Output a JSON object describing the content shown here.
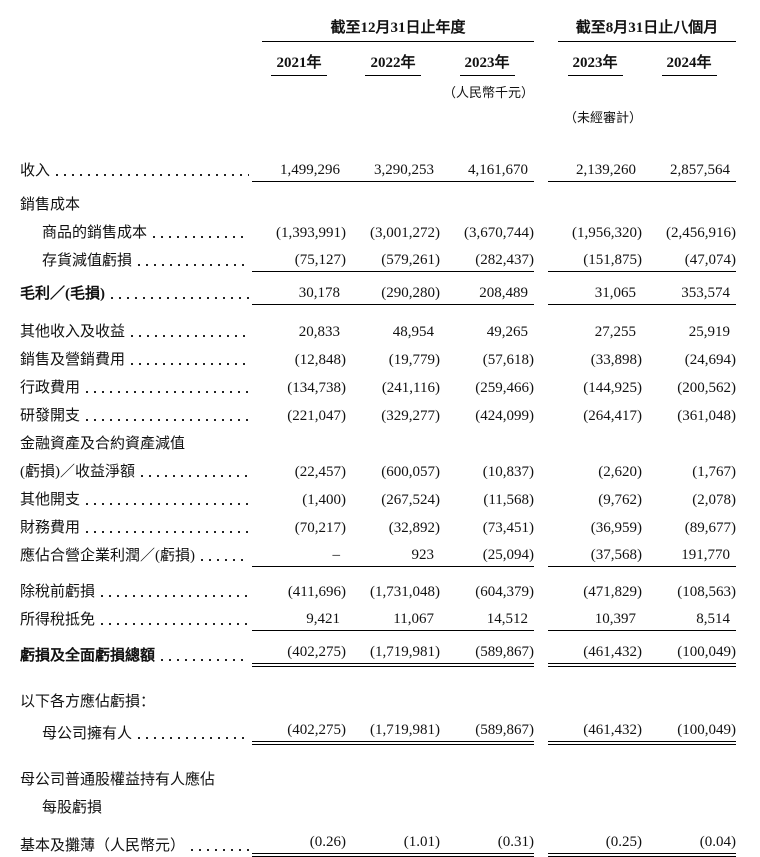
{
  "table": {
    "group_annual": "截至12月31日止年度",
    "group_interim": "截至8月31日止八個月",
    "columns": [
      "2021年",
      "2022年",
      "2023年",
      "2023年",
      "2024年"
    ],
    "note_currency": "（人民幣千元）",
    "note_unaudited": "（未經審計）",
    "rows": [
      {
        "label": "收入",
        "dots": true,
        "values": [
          "1,499,296",
          "3,290,253",
          "4,161,670",
          "2,139,260",
          "2,857,564"
        ],
        "line": "single",
        "space": 28
      },
      {
        "label": "銷售成本",
        "space": 6
      },
      {
        "label": "商品的銷售成本",
        "indent": true,
        "dots": true,
        "values": [
          "(1,393,991)",
          "(3,001,272)",
          "(3,670,744)",
          "(1,956,320)",
          "(2,456,916)"
        ]
      },
      {
        "label": "存貨減值虧損",
        "indent": true,
        "dots": true,
        "values": [
          "(75,127)",
          "(579,261)",
          "(282,437)",
          "(151,875)",
          "(47,074)"
        ],
        "line": "single"
      },
      {
        "label": "毛利／(毛損)",
        "bold": true,
        "dots": true,
        "values": [
          "30,178",
          "(290,280)",
          "208,489",
          "31,065",
          "353,574"
        ],
        "line": "single",
        "space": 5
      },
      {
        "label": "其他收入及收益",
        "dots": true,
        "values": [
          "20,833",
          "48,954",
          "49,265",
          "27,255",
          "25,919"
        ],
        "space": 10
      },
      {
        "label": "銷售及營銷費用",
        "dots": true,
        "values": [
          "(12,848)",
          "(19,779)",
          "(57,618)",
          "(33,898)",
          "(24,694)"
        ]
      },
      {
        "label": "行政費用",
        "dots": true,
        "values": [
          "(134,738)",
          "(241,116)",
          "(259,466)",
          "(144,925)",
          "(200,562)"
        ]
      },
      {
        "label": "研發開支",
        "dots": true,
        "values": [
          "(221,047)",
          "(329,277)",
          "(424,099)",
          "(264,417)",
          "(361,048)"
        ]
      },
      {
        "label": "金融資產及合約資產減值"
      },
      {
        "label": "(虧損)／收益淨額",
        "dots": true,
        "values": [
          "(22,457)",
          "(600,057)",
          "(10,837)",
          "(2,620)",
          "(1,767)"
        ]
      },
      {
        "label": "其他開支",
        "dots": true,
        "values": [
          "(1,400)",
          "(267,524)",
          "(11,568)",
          "(9,762)",
          "(2,078)"
        ]
      },
      {
        "label": "財務費用",
        "dots": true,
        "values": [
          "(70,217)",
          "(32,892)",
          "(73,451)",
          "(36,959)",
          "(89,677)"
        ]
      },
      {
        "label": "應佔合營企業利潤／(虧損)",
        "dots": true,
        "values": [
          "–",
          "923",
          "(25,094)",
          "(37,568)",
          "191,770"
        ],
        "line": "single"
      },
      {
        "label": "除稅前虧損",
        "dots": true,
        "values": [
          "(411,696)",
          "(1,731,048)",
          "(604,379)",
          "(471,829)",
          "(108,563)"
        ],
        "space": 8
      },
      {
        "label": "所得稅抵免",
        "dots": true,
        "values": [
          "9,421",
          "11,067",
          "14,512",
          "10,397",
          "8,514"
        ],
        "line": "single"
      },
      {
        "label": "虧損及全面虧損總額",
        "bold": true,
        "dots": true,
        "values": [
          "(402,275)",
          "(1,719,981)",
          "(589,867)",
          "(461,432)",
          "(100,049)"
        ],
        "line": "double",
        "space": 8
      },
      {
        "label": "以下各方應佔虧損：",
        "space": 18
      },
      {
        "label": "母公司擁有人",
        "indent": true,
        "dots": true,
        "values": [
          "(402,275)",
          "(1,719,981)",
          "(589,867)",
          "(461,432)",
          "(100,049)"
        ],
        "line": "double",
        "space": 4
      },
      {
        "label": "母公司普通股權益持有人應佔",
        "space": 18
      },
      {
        "label": "每股虧損",
        "indent": true
      },
      {
        "label": "基本及攤薄（人民幣元）",
        "dots": true,
        "values": [
          "(0.26)",
          "(1.01)",
          "(0.31)",
          "(0.25)",
          "(0.04)"
        ],
        "line": "double",
        "space": 10
      }
    ]
  }
}
